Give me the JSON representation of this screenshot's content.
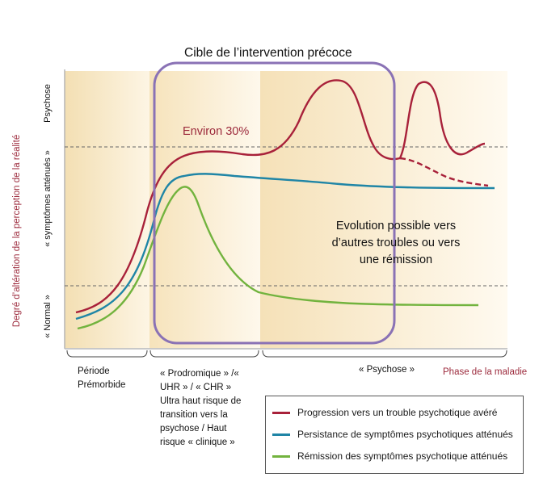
{
  "title": "Cible de l’intervention précoce",
  "annotation_percent": "Environ 30%",
  "annotation_evolution": "Evolution possible vers d’autres troubles ou vers une rémission",
  "y_axis": {
    "label": "Degré d’altération de la perception de la réalité",
    "level_top": "Psychose",
    "level_mid": "« symptômes atténués »",
    "level_low": "« Normal »"
  },
  "x_axis": {
    "label": "Phase de la maladie",
    "phases": [
      "Période Prémorbide",
      "« Prodromique » /« UHR » / « CHR » Ultra haut risque de transition vers la psychose / Haut risque « clinique »",
      "« Psychose »"
    ]
  },
  "legend": [
    {
      "label": "Progression vers un trouble psychotique avéré",
      "color": "#a8213a"
    },
    {
      "label": "Persistance de symptômes psychotiques atténués",
      "color": "#1f85a6"
    },
    {
      "label": "Rémission des symptômes psychotique atténués",
      "color": "#72b33e"
    }
  ],
  "colors": {
    "progression": "#a8213a",
    "persistance": "#1f85a6",
    "remission": "#72b33e",
    "target_box": "#8a72b5",
    "axis_label": "#9c2a3c",
    "threshold_line": "#666666"
  }
}
